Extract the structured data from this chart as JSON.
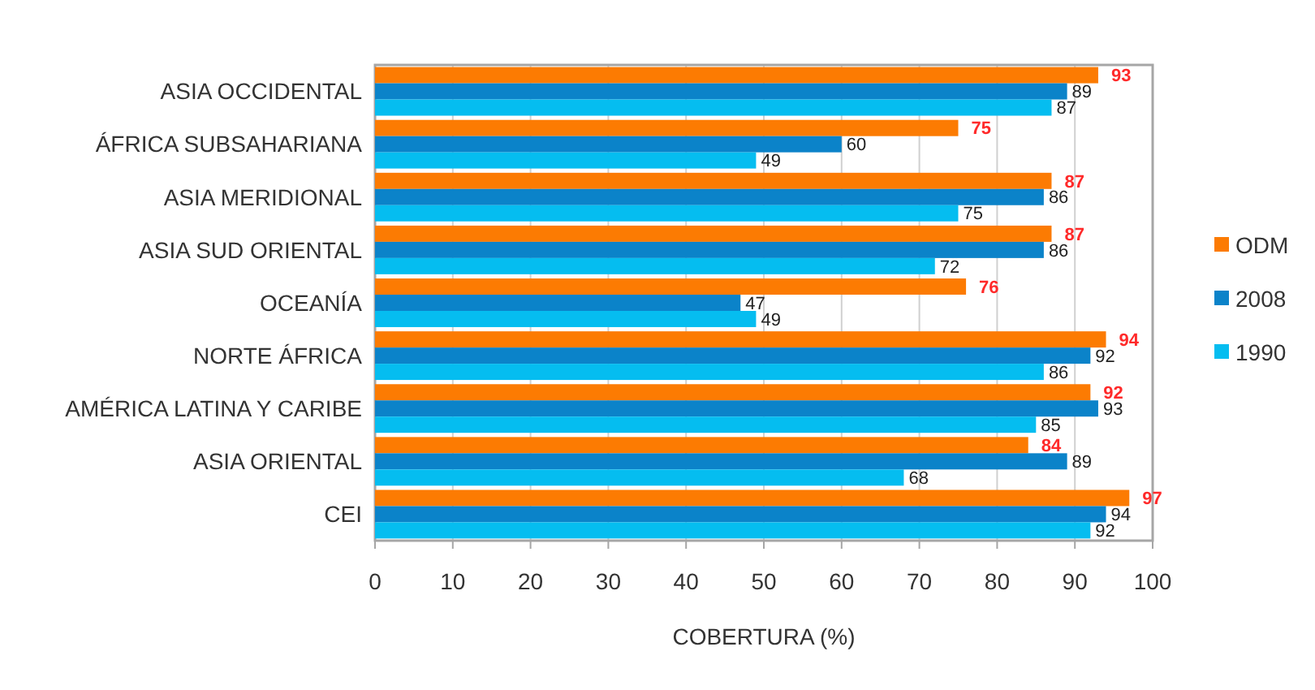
{
  "chart_data": {
    "type": "bar",
    "orientation": "horizontal",
    "xlabel": "COBERTURA (%)",
    "categories": [
      "ASIA OCCIDENTAL",
      "ÁFRICA SUBSAHARIANA",
      "ASIA MERIDIONAL",
      "ASIA SUD ORIENTAL",
      "OCEANÍA",
      "NORTE ÁFRICA",
      "AMÉRICA LATINA Y CARIBE",
      "ASIA ORIENTAL",
      "CEI"
    ],
    "series": [
      {
        "name": "ODM",
        "color": "#fc7b02",
        "values": [
          93,
          75,
          87,
          87,
          76,
          94,
          92,
          84,
          97
        ]
      },
      {
        "name": "2008",
        "color": "#0b83c9",
        "values": [
          89,
          60,
          86,
          86,
          47,
          92,
          93,
          89,
          94
        ]
      },
      {
        "name": "1990",
        "color": "#05bdf0",
        "values": [
          87,
          49,
          75,
          72,
          49,
          86,
          85,
          68,
          92
        ]
      }
    ],
    "xlim": [
      0,
      100
    ],
    "xticks": [
      0,
      10,
      20,
      30,
      40,
      50,
      60,
      70,
      80,
      90,
      100
    ],
    "grid": "x",
    "legend": "right",
    "data_labels": true
  }
}
